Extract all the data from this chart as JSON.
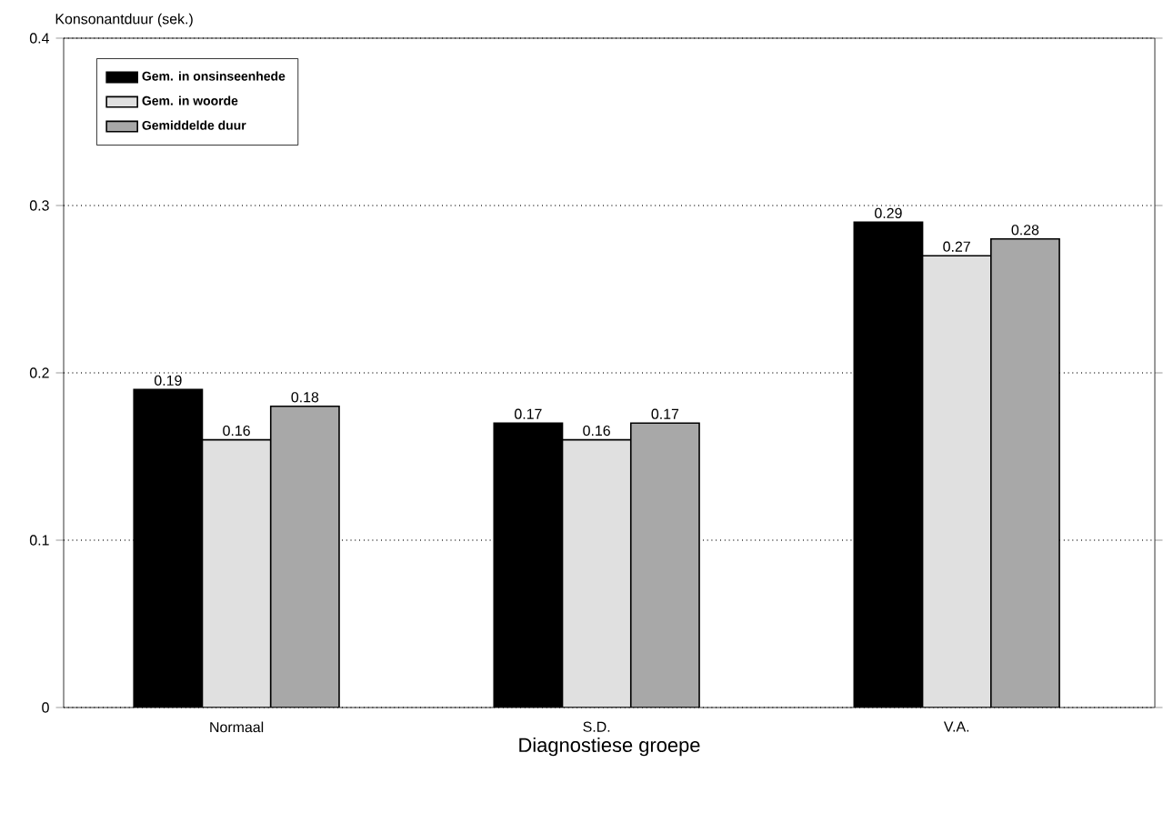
{
  "chart_data": {
    "type": "bar",
    "ylabel": "Konsonantduur (sek.)",
    "xlabel": "Diagnostiese groepe",
    "categories": [
      "Normaal",
      "S.D.",
      "V.A."
    ],
    "series": [
      {
        "name": "Gem. in onsinseenhede",
        "color": "#000000",
        "values": [
          0.19,
          0.17,
          0.29
        ]
      },
      {
        "name": "Gem. in woorde",
        "color": "#e0e0e0",
        "values": [
          0.16,
          0.16,
          0.27
        ]
      },
      {
        "name": "Gemiddelde duur",
        "color": "#a8a8a8",
        "values": [
          0.18,
          0.17,
          0.28
        ]
      }
    ],
    "ylim": [
      0,
      0.4
    ],
    "yticks": [
      0,
      0.1,
      0.2,
      0.3,
      0.4
    ],
    "grid": "y",
    "legend": "top left",
    "data_labels": true
  }
}
